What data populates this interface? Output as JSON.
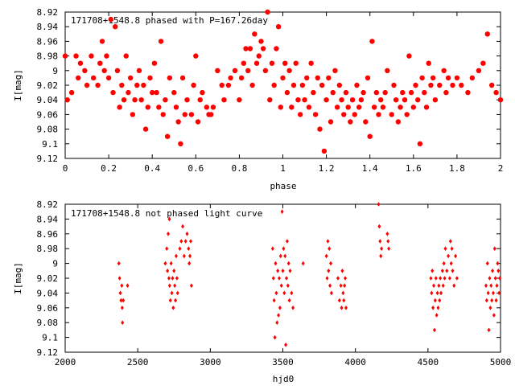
{
  "chart_data": [
    {
      "type": "scatter",
      "title": "171708+1548.8 phased with P=167.26day",
      "xlabel": "phase",
      "ylabel": "I[mag]",
      "xlim": [
        0,
        2
      ],
      "ylim": [
        9.12,
        8.92
      ],
      "y_reversed": true,
      "xticks": [
        "0",
        "0.2",
        "0.4",
        "0.6",
        "0.8",
        "1",
        "1.2",
        "1.4",
        "1.6",
        "1.8",
        "2"
      ],
      "yticks": [
        "8.92",
        "8.94",
        "8.96",
        "8.98",
        "9",
        "9.02",
        "9.04",
        "9.06",
        "9.08",
        "9.1",
        "9.12"
      ],
      "marker": "filled-circle",
      "color": "#ff0000",
      "points": [
        [
          0.0,
          8.98
        ],
        [
          0.01,
          9.04
        ],
        [
          0.03,
          9.03
        ],
        [
          0.05,
          8.98
        ],
        [
          0.06,
          9.01
        ],
        [
          0.07,
          8.99
        ],
        [
          0.09,
          9.0
        ],
        [
          0.1,
          9.02
        ],
        [
          0.12,
          8.98
        ],
        [
          0.13,
          9.01
        ],
        [
          0.15,
          9.02
        ],
        [
          0.16,
          8.99
        ],
        [
          0.17,
          8.96
        ],
        [
          0.18,
          9.0
        ],
        [
          0.19,
          8.98
        ],
        [
          0.2,
          9.01
        ],
        [
          0.21,
          8.93
        ],
        [
          0.22,
          9.03
        ],
        [
          0.23,
          8.94
        ],
        [
          0.24,
          9.0
        ],
        [
          0.25,
          9.05
        ],
        [
          0.26,
          9.02
        ],
        [
          0.27,
          9.04
        ],
        [
          0.28,
          8.98
        ],
        [
          0.29,
          9.03
        ],
        [
          0.3,
          9.01
        ],
        [
          0.31,
          9.06
        ],
        [
          0.32,
          9.04
        ],
        [
          0.33,
          9.02
        ],
        [
          0.34,
          9.0
        ],
        [
          0.35,
          9.04
        ],
        [
          0.36,
          9.02
        ],
        [
          0.37,
          9.08
        ],
        [
          0.38,
          9.05
        ],
        [
          0.39,
          9.01
        ],
        [
          0.4,
          9.03
        ],
        [
          0.41,
          8.99
        ],
        [
          0.42,
          9.03
        ],
        [
          0.43,
          9.05
        ],
        [
          0.44,
          8.96
        ],
        [
          0.45,
          9.06
        ],
        [
          0.46,
          9.04
        ],
        [
          0.47,
          9.09
        ],
        [
          0.48,
          9.01
        ],
        [
          0.5,
          9.03
        ],
        [
          0.51,
          9.05
        ],
        [
          0.52,
          9.07
        ],
        [
          0.53,
          9.1
        ],
        [
          0.54,
          9.01
        ],
        [
          0.55,
          9.06
        ],
        [
          0.56,
          9.04
        ],
        [
          0.58,
          9.06
        ],
        [
          0.59,
          9.02
        ],
        [
          0.6,
          8.98
        ],
        [
          0.61,
          9.07
        ],
        [
          0.62,
          9.04
        ],
        [
          0.63,
          9.03
        ],
        [
          0.65,
          9.05
        ],
        [
          0.66,
          9.06
        ],
        [
          0.67,
          9.06
        ],
        [
          0.68,
          9.05
        ],
        [
          0.7,
          9.0
        ],
        [
          0.72,
          9.02
        ],
        [
          0.73,
          9.04
        ],
        [
          0.75,
          9.02
        ],
        [
          0.76,
          9.01
        ],
        [
          0.78,
          9.0
        ],
        [
          0.8,
          9.04
        ],
        [
          0.81,
          9.01
        ],
        [
          0.82,
          8.99
        ],
        [
          0.83,
          8.97
        ],
        [
          0.84,
          9.0
        ],
        [
          0.85,
          8.97
        ],
        [
          0.86,
          9.02
        ],
        [
          0.87,
          8.95
        ],
        [
          0.88,
          8.99
        ],
        [
          0.89,
          8.98
        ],
        [
          0.9,
          8.96
        ],
        [
          0.91,
          8.97
        ],
        [
          0.92,
          9.0
        ],
        [
          0.93,
          8.92
        ],
        [
          0.94,
          9.04
        ],
        [
          0.95,
          8.99
        ],
        [
          0.96,
          9.02
        ],
        [
          0.97,
          8.97
        ],
        [
          0.98,
          8.94
        ],
        [
          0.99,
          9.05
        ],
        [
          1.0,
          9.01
        ],
        [
          1.01,
          8.99
        ],
        [
          1.02,
          9.03
        ],
        [
          1.03,
          9.0
        ],
        [
          1.04,
          9.05
        ],
        [
          1.05,
          9.02
        ],
        [
          1.06,
          8.99
        ],
        [
          1.07,
          9.04
        ],
        [
          1.08,
          9.06
        ],
        [
          1.09,
          9.02
        ],
        [
          1.1,
          9.04
        ],
        [
          1.11,
          9.01
        ],
        [
          1.12,
          9.05
        ],
        [
          1.13,
          8.99
        ],
        [
          1.14,
          9.03
        ],
        [
          1.15,
          9.06
        ],
        [
          1.16,
          9.01
        ],
        [
          1.17,
          9.08
        ],
        [
          1.18,
          9.02
        ],
        [
          1.19,
          9.11
        ],
        [
          1.2,
          9.04
        ],
        [
          1.21,
          9.01
        ],
        [
          1.22,
          9.07
        ],
        [
          1.23,
          9.03
        ],
        [
          1.24,
          9.0
        ],
        [
          1.25,
          9.05
        ],
        [
          1.26,
          9.02
        ],
        [
          1.27,
          9.04
        ],
        [
          1.28,
          9.06
        ],
        [
          1.29,
          9.03
        ],
        [
          1.3,
          9.05
        ],
        [
          1.31,
          9.07
        ],
        [
          1.32,
          9.04
        ],
        [
          1.33,
          9.06
        ],
        [
          1.34,
          9.02
        ],
        [
          1.35,
          9.05
        ],
        [
          1.36,
          9.04
        ],
        [
          1.37,
          9.03
        ],
        [
          1.38,
          9.07
        ],
        [
          1.39,
          9.01
        ],
        [
          1.4,
          9.09
        ],
        [
          1.41,
          8.96
        ],
        [
          1.42,
          9.05
        ],
        [
          1.43,
          9.03
        ],
        [
          1.44,
          9.06
        ],
        [
          1.45,
          9.04
        ],
        [
          1.46,
          9.05
        ],
        [
          1.47,
          9.03
        ],
        [
          1.48,
          9.0
        ],
        [
          1.5,
          9.06
        ],
        [
          1.51,
          9.02
        ],
        [
          1.52,
          9.04
        ],
        [
          1.53,
          9.07
        ],
        [
          1.54,
          9.05
        ],
        [
          1.55,
          9.03
        ],
        [
          1.56,
          9.04
        ],
        [
          1.57,
          9.06
        ],
        [
          1.58,
          8.98
        ],
        [
          1.59,
          9.03
        ],
        [
          1.6,
          9.05
        ],
        [
          1.61,
          9.02
        ],
        [
          1.62,
          9.04
        ],
        [
          1.63,
          9.1
        ],
        [
          1.64,
          9.01
        ],
        [
          1.65,
          9.03
        ],
        [
          1.66,
          9.05
        ],
        [
          1.67,
          8.99
        ],
        [
          1.68,
          9.02
        ],
        [
          1.69,
          9.01
        ],
        [
          1.7,
          9.04
        ],
        [
          1.72,
          9.02
        ],
        [
          1.74,
          9.0
        ],
        [
          1.75,
          9.03
        ],
        [
          1.76,
          9.01
        ],
        [
          1.78,
          9.02
        ],
        [
          1.8,
          9.01
        ],
        [
          1.82,
          9.02
        ],
        [
          1.85,
          9.03
        ],
        [
          1.87,
          9.01
        ],
        [
          1.9,
          9.0
        ],
        [
          1.92,
          8.99
        ],
        [
          1.94,
          8.95
        ],
        [
          1.96,
          9.02
        ],
        [
          1.98,
          9.03
        ],
        [
          2.0,
          9.04
        ]
      ]
    },
    {
      "type": "scatter",
      "title": "171708+1548.8 not phased light curve",
      "xlabel": "hjd0",
      "ylabel": "I[mag]",
      "xlim": [
        2000,
        5000
      ],
      "ylim": [
        9.12,
        8.92
      ],
      "y_reversed": true,
      "xticks": [
        "2000",
        "2500",
        "3000",
        "3500",
        "4000",
        "4500",
        "5000"
      ],
      "yticks": [
        "8.92",
        "8.94",
        "8.96",
        "8.98",
        "9",
        "9.02",
        "9.04",
        "9.06",
        "9.08",
        "9.1",
        "9.12"
      ],
      "marker": "small-diamond",
      "color": "#ff0000",
      "points": [
        [
          2370,
          9.0
        ],
        [
          2375,
          9.02
        ],
        [
          2380,
          9.04
        ],
        [
          2385,
          9.05
        ],
        [
          2390,
          9.03
        ],
        [
          2393,
          9.06
        ],
        [
          2395,
          9.08
        ],
        [
          2400,
          9.05
        ],
        [
          2430,
          9.03
        ],
        [
          2690,
          9.0
        ],
        [
          2700,
          8.98
        ],
        [
          2705,
          9.01
        ],
        [
          2710,
          8.96
        ],
        [
          2715,
          9.02
        ],
        [
          2718,
          8.94
        ],
        [
          2720,
          9.03
        ],
        [
          2725,
          9.05
        ],
        [
          2730,
          9.0
        ],
        [
          2735,
          9.04
        ],
        [
          2740,
          9.02
        ],
        [
          2745,
          9.06
        ],
        [
          2750,
          9.01
        ],
        [
          2755,
          9.03
        ],
        [
          2760,
          9.05
        ],
        [
          2765,
          8.99
        ],
        [
          2770,
          9.02
        ],
        [
          2775,
          9.04
        ],
        [
          2790,
          8.98
        ],
        [
          2800,
          8.97
        ],
        [
          2810,
          8.95
        ],
        [
          2820,
          8.99
        ],
        [
          2830,
          8.97
        ],
        [
          2840,
          8.96
        ],
        [
          2850,
          8.98
        ],
        [
          2855,
          9.0
        ],
        [
          2860,
          8.99
        ],
        [
          2865,
          8.97
        ],
        [
          2870,
          9.03
        ],
        [
          3430,
          8.98
        ],
        [
          3435,
          9.02
        ],
        [
          3440,
          9.05
        ],
        [
          3445,
          9.1
        ],
        [
          3450,
          9.0
        ],
        [
          3455,
          9.04
        ],
        [
          3460,
          9.08
        ],
        [
          3465,
          9.01
        ],
        [
          3470,
          9.07
        ],
        [
          3475,
          9.02
        ],
        [
          3480,
          9.06
        ],
        [
          3485,
          8.99
        ],
        [
          3490,
          9.03
        ],
        [
          3495,
          8.93
        ],
        [
          3500,
          9.01
        ],
        [
          3505,
          8.98
        ],
        [
          3510,
          9.04
        ],
        [
          3515,
          8.99
        ],
        [
          3520,
          9.11
        ],
        [
          3525,
          9.02
        ],
        [
          3530,
          8.97
        ],
        [
          3535,
          9.03
        ],
        [
          3540,
          9.0
        ],
        [
          3545,
          9.05
        ],
        [
          3550,
          9.01
        ],
        [
          3560,
          9.04
        ],
        [
          3570,
          9.06
        ],
        [
          3640,
          9.0
        ],
        [
          3800,
          8.99
        ],
        [
          3805,
          9.02
        ],
        [
          3810,
          8.97
        ],
        [
          3815,
          9.01
        ],
        [
          3820,
          8.98
        ],
        [
          3825,
          9.03
        ],
        [
          3830,
          9.0
        ],
        [
          3835,
          9.04
        ],
        [
          3880,
          9.02
        ],
        [
          3890,
          9.05
        ],
        [
          3900,
          9.03
        ],
        [
          3905,
          9.06
        ],
        [
          3910,
          9.01
        ],
        [
          3915,
          9.04
        ],
        [
          3920,
          9.05
        ],
        [
          3925,
          9.03
        ],
        [
          3930,
          9.02
        ],
        [
          3935,
          9.06
        ],
        [
          4160,
          8.92
        ],
        [
          4165,
          8.95
        ],
        [
          4170,
          8.97
        ],
        [
          4175,
          8.99
        ],
        [
          4180,
          8.98
        ],
        [
          4220,
          8.96
        ],
        [
          4225,
          8.97
        ],
        [
          4230,
          8.98
        ],
        [
          4520,
          9.02
        ],
        [
          4525,
          9.04
        ],
        [
          4530,
          9.01
        ],
        [
          4535,
          9.06
        ],
        [
          4540,
          9.03
        ],
        [
          4545,
          9.09
        ],
        [
          4550,
          9.05
        ],
        [
          4555,
          9.02
        ],
        [
          4560,
          9.07
        ],
        [
          4565,
          9.04
        ],
        [
          4570,
          9.06
        ],
        [
          4575,
          9.03
        ],
        [
          4580,
          9.05
        ],
        [
          4585,
          9.02
        ],
        [
          4590,
          9.04
        ],
        [
          4600,
          9.01
        ],
        [
          4605,
          9.03
        ],
        [
          4610,
          9.0
        ],
        [
          4615,
          9.02
        ],
        [
          4620,
          8.98
        ],
        [
          4630,
          9.01
        ],
        [
          4640,
          8.99
        ],
        [
          4650,
          9.02
        ],
        [
          4655,
          8.97
        ],
        [
          4660,
          9.0
        ],
        [
          4665,
          8.98
        ],
        [
          4670,
          9.01
        ],
        [
          4680,
          9.03
        ],
        [
          4690,
          8.99
        ],
        [
          4700,
          9.02
        ],
        [
          4900,
          9.03
        ],
        [
          4905,
          9.05
        ],
        [
          4910,
          9.0
        ],
        [
          4915,
          9.04
        ],
        [
          4920,
          9.09
        ],
        [
          4925,
          9.02
        ],
        [
          4930,
          9.06
        ],
        [
          4935,
          9.03
        ],
        [
          4940,
          9.05
        ],
        [
          4945,
          9.01
        ],
        [
          4950,
          9.04
        ],
        [
          4955,
          9.07
        ],
        [
          4960,
          8.98
        ],
        [
          4965,
          9.02
        ],
        [
          4970,
          9.05
        ],
        [
          4975,
          9.03
        ],
        [
          4980,
          9.0
        ],
        [
          4985,
          9.01
        ],
        [
          4990,
          9.04
        ],
        [
          4995,
          9.02
        ]
      ]
    }
  ]
}
